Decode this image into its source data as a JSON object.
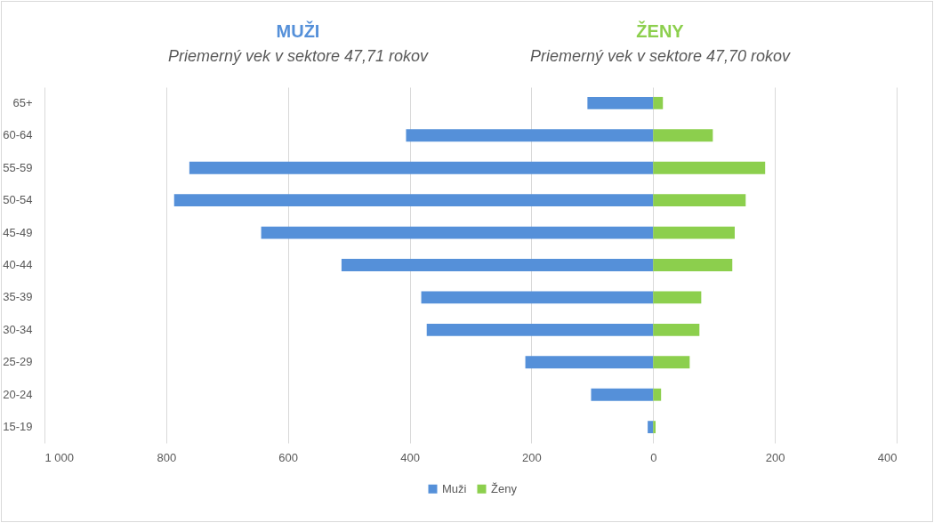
{
  "chart_data": {
    "type": "bar",
    "orientation": "horizontal",
    "annotations": [
      "MUŽI",
      "Priemerný vek v sektore 47,71 rokov",
      "ŽENY",
      "Priemerný vek v sektore 47,70 rokov"
    ],
    "categories": [
      "65+",
      "60-64",
      "55-59",
      "50-54",
      "45-49",
      "40-44",
      "35-39",
      "30-34",
      "25-29",
      "20-24",
      "15-19"
    ],
    "series": [
      {
        "name": "Muži",
        "color": "#5590d9",
        "values": [
          -108,
          -406,
          -762,
          -787,
          -644,
          -512,
          -381,
          -372,
          -210,
          -102,
          -9
        ]
      },
      {
        "name": "Ženy",
        "color": "#8ccf4d",
        "values": [
          16,
          98,
          184,
          152,
          134,
          130,
          79,
          76,
          60,
          13,
          4
        ]
      }
    ],
    "xlim": [
      -1000,
      400
    ],
    "xticks": [
      {
        "value": -1000,
        "label": "1 000"
      },
      {
        "value": -800,
        "label": "800"
      },
      {
        "value": -600,
        "label": "600"
      },
      {
        "value": -400,
        "label": "400"
      },
      {
        "value": -200,
        "label": "200"
      },
      0,
      200,
      400
    ],
    "grid": "x",
    "legend": "bottom",
    "stacked": true
  }
}
